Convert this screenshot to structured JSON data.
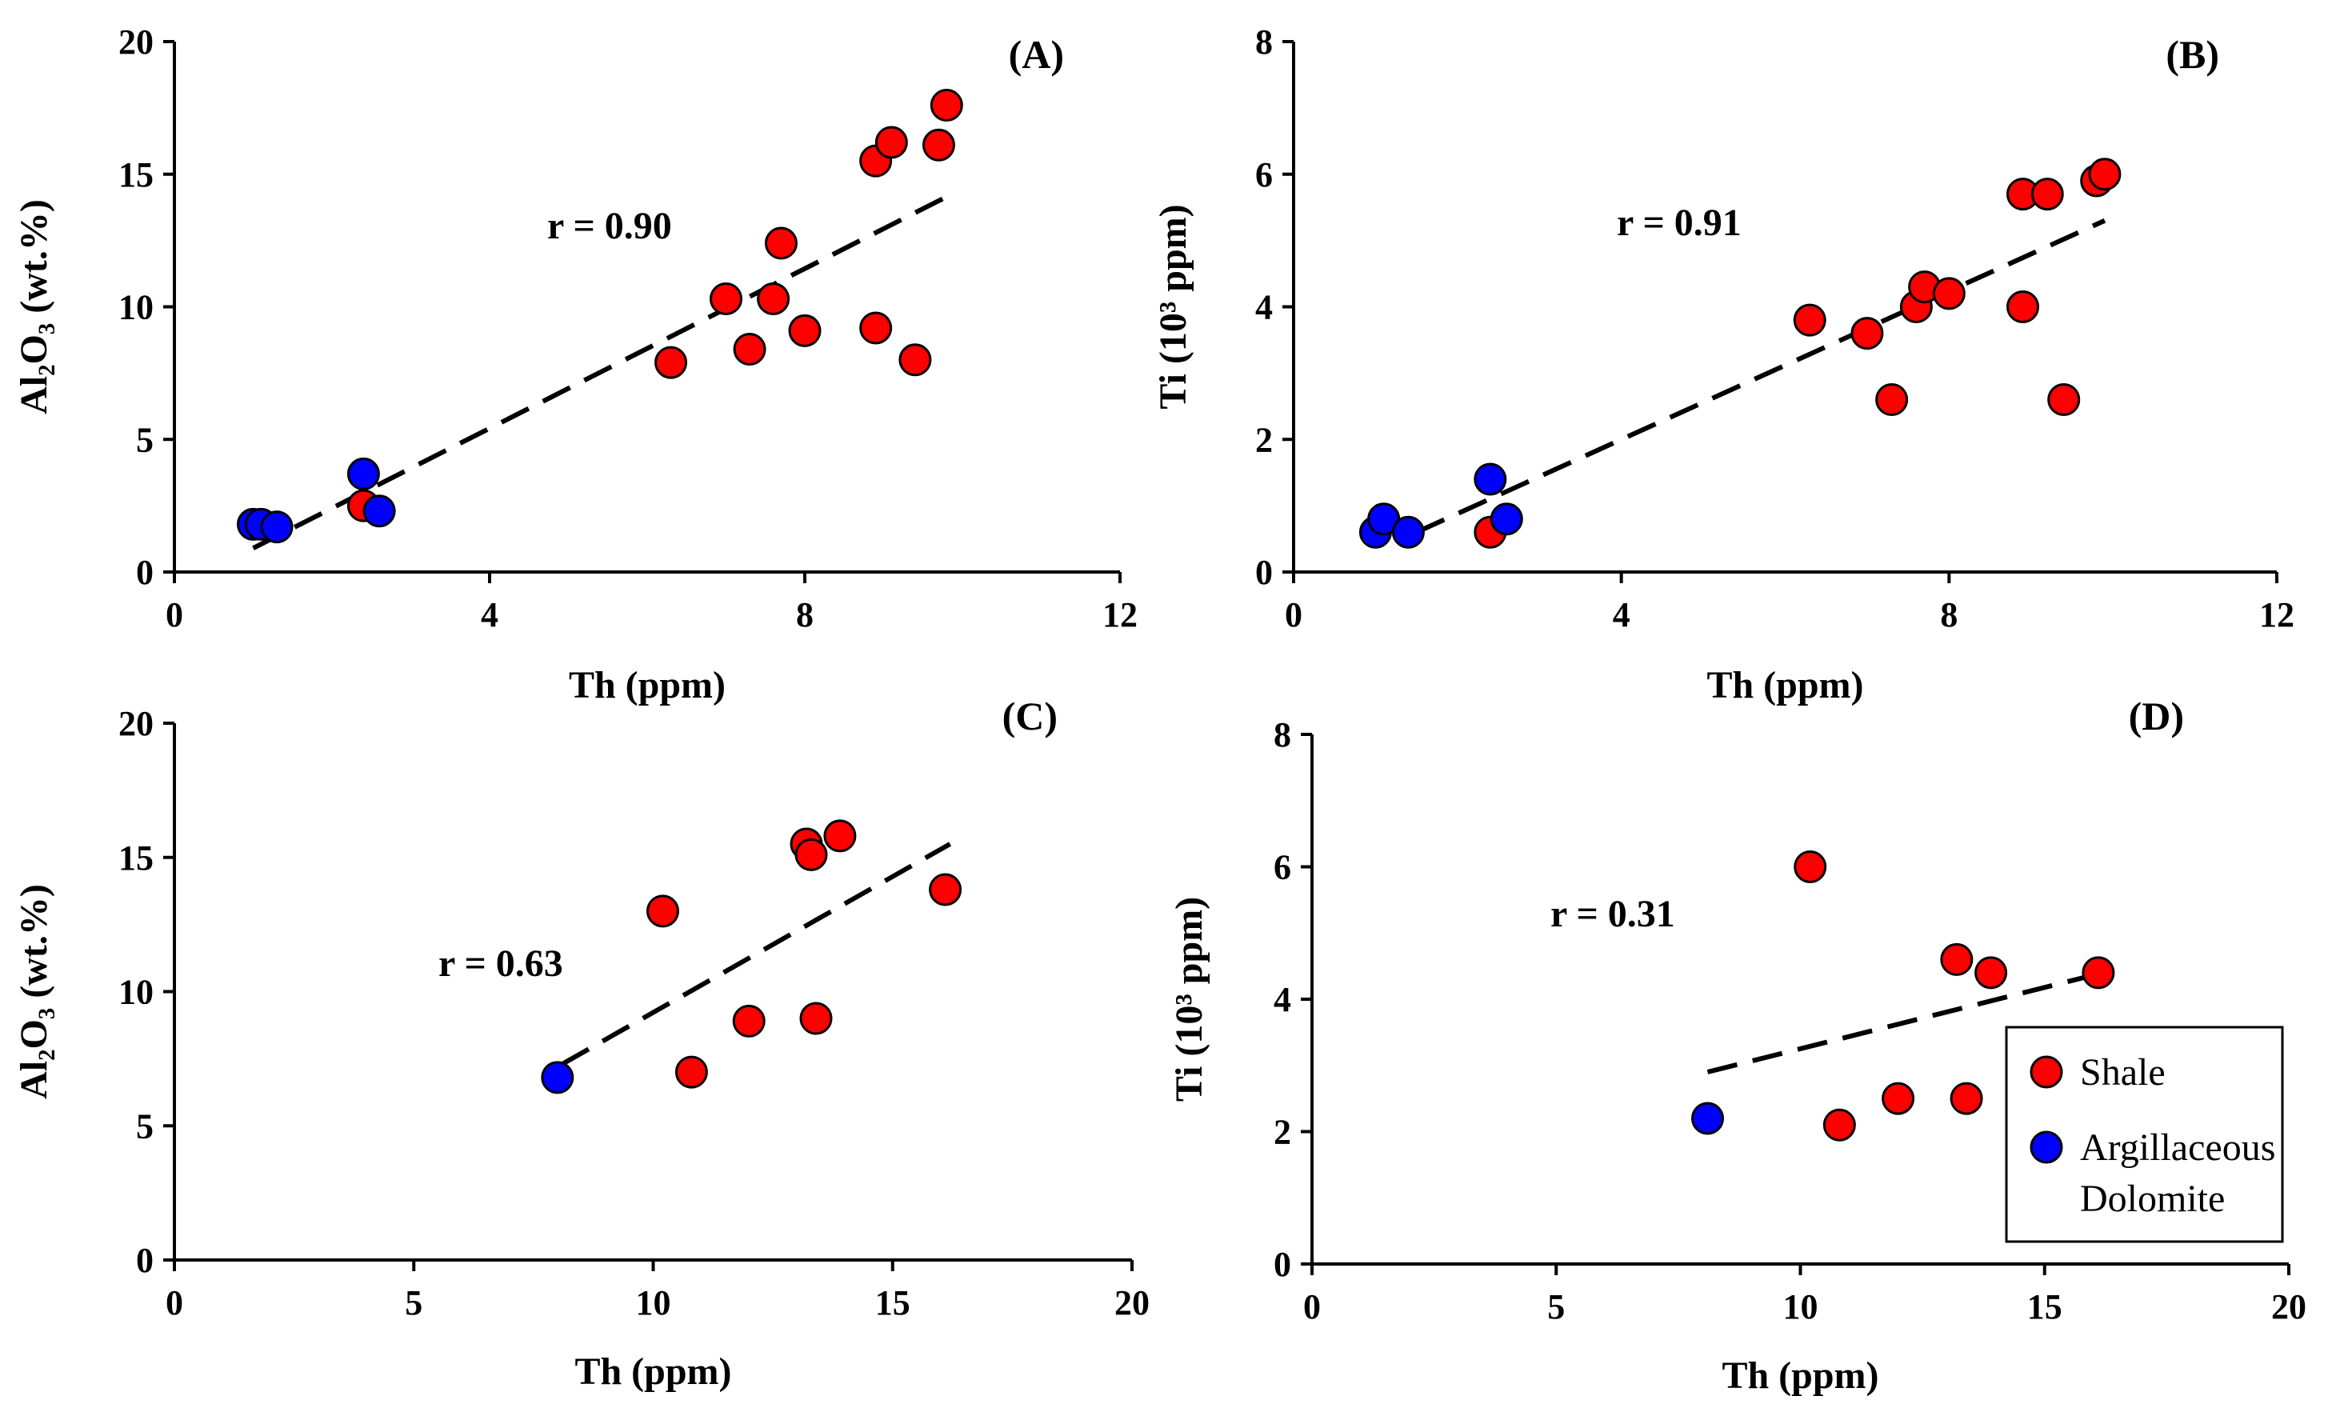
{
  "colors": {
    "shale": "#ff0000",
    "dolomite": "#0000ff",
    "axis": "#000000"
  },
  "legend": {
    "position": "right",
    "items": [
      {
        "key": "shale",
        "lines": [
          "Shale"
        ]
      },
      {
        "key": "dolomite",
        "lines": [
          "Argillaceous",
          "Dolomite"
        ]
      }
    ]
  },
  "chart_data": [
    {
      "id": "A",
      "type": "scatter",
      "panel_label": "(A)",
      "r_text": "r = 0.90",
      "xlabel": "Th (ppm)",
      "ylabel": "Al₂O₃ (wt.%)",
      "xlim": [
        0,
        12
      ],
      "ylim": [
        0,
        20
      ],
      "xticks": [
        0,
        4,
        8,
        12
      ],
      "yticks": [
        0,
        5,
        10,
        15,
        20
      ],
      "trend": {
        "x": [
          1.0,
          9.9
        ],
        "y": [
          0.9,
          14.3
        ]
      },
      "series": [
        {
          "key": "shale",
          "points": [
            [
              2.4,
              2.5
            ],
            [
              6.3,
              7.9
            ],
            [
              7.0,
              10.3
            ],
            [
              7.3,
              8.4
            ],
            [
              7.6,
              10.3
            ],
            [
              7.7,
              12.4
            ],
            [
              8.0,
              9.1
            ],
            [
              8.9,
              9.2
            ],
            [
              8.9,
              15.5
            ],
            [
              9.1,
              16.2
            ],
            [
              9.4,
              8.0
            ],
            [
              9.7,
              16.1
            ],
            [
              9.8,
              17.6
            ]
          ]
        },
        {
          "key": "dolomite",
          "points": [
            [
              1.0,
              1.8
            ],
            [
              1.1,
              1.8
            ],
            [
              1.3,
              1.7
            ],
            [
              2.4,
              3.7
            ],
            [
              2.6,
              2.3
            ]
          ]
        }
      ]
    },
    {
      "id": "B",
      "type": "scatter",
      "panel_label": "(B)",
      "r_text": "r = 0.91",
      "xlabel": "Th (ppm)",
      "ylabel": "Ti (10³ ppm)",
      "xlim": [
        0,
        12
      ],
      "ylim": [
        0,
        8
      ],
      "xticks": [
        0,
        4,
        8,
        12
      ],
      "yticks": [
        0,
        2,
        4,
        6,
        8
      ],
      "trend": {
        "x": [
          1.5,
          9.9
        ],
        "y": [
          0.6,
          5.3
        ]
      },
      "series": [
        {
          "key": "shale",
          "points": [
            [
              2.4,
              0.6
            ],
            [
              6.3,
              3.8
            ],
            [
              7.0,
              3.6
            ],
            [
              7.3,
              2.6
            ],
            [
              7.6,
              4.0
            ],
            [
              7.7,
              4.3
            ],
            [
              8.0,
              4.2
            ],
            [
              8.9,
              4.0
            ],
            [
              8.9,
              5.7
            ],
            [
              9.2,
              5.7
            ],
            [
              9.4,
              2.6
            ],
            [
              9.8,
              5.9
            ],
            [
              9.9,
              6.0
            ]
          ]
        },
        {
          "key": "dolomite",
          "points": [
            [
              1.0,
              0.6
            ],
            [
              1.1,
              0.8
            ],
            [
              1.4,
              0.6
            ],
            [
              2.4,
              1.4
            ],
            [
              2.6,
              0.8
            ]
          ]
        }
      ]
    },
    {
      "id": "C",
      "type": "scatter",
      "panel_label": "(C)",
      "r_text": "r = 0.63",
      "xlabel": "Th (ppm)",
      "ylabel": "Al₂O₃ (wt.%)",
      "xlim": [
        0,
        20
      ],
      "ylim": [
        0,
        20
      ],
      "xticks": [
        0,
        5,
        10,
        15,
        20
      ],
      "yticks": [
        0,
        5,
        10,
        15,
        20
      ],
      "trend": {
        "x": [
          8.1,
          16.2
        ],
        "y": [
          7.3,
          15.5
        ]
      },
      "series": [
        {
          "key": "shale",
          "points": [
            [
              10.2,
              13.0
            ],
            [
              10.8,
              7.0
            ],
            [
              12.0,
              8.9
            ],
            [
              13.2,
              15.5
            ],
            [
              13.3,
              15.1
            ],
            [
              13.4,
              9.0
            ],
            [
              13.9,
              15.8
            ],
            [
              16.1,
              13.8
            ]
          ]
        },
        {
          "key": "dolomite",
          "points": [
            [
              8.0,
              6.8
            ]
          ]
        }
      ]
    },
    {
      "id": "D",
      "type": "scatter",
      "panel_label": "(D)",
      "r_text": "r = 0.31",
      "xlabel": "Th (ppm)",
      "ylabel": "Ti (10³ ppm)",
      "xlim": [
        0,
        20
      ],
      "ylim": [
        0,
        8
      ],
      "xticks": [
        0,
        5,
        10,
        15,
        20
      ],
      "yticks": [
        0,
        2,
        4,
        6,
        8
      ],
      "trend": {
        "x": [
          8.1,
          16.2
        ],
        "y": [
          2.9,
          4.4
        ]
      },
      "series": [
        {
          "key": "shale",
          "points": [
            [
              10.2,
              6.0
            ],
            [
              10.8,
              2.1
            ],
            [
              12.0,
              2.5
            ],
            [
              13.2,
              4.6
            ],
            [
              13.4,
              2.5
            ],
            [
              13.9,
              4.4
            ],
            [
              16.1,
              4.4
            ]
          ]
        },
        {
          "key": "dolomite",
          "points": [
            [
              8.1,
              2.2
            ]
          ]
        }
      ]
    }
  ]
}
